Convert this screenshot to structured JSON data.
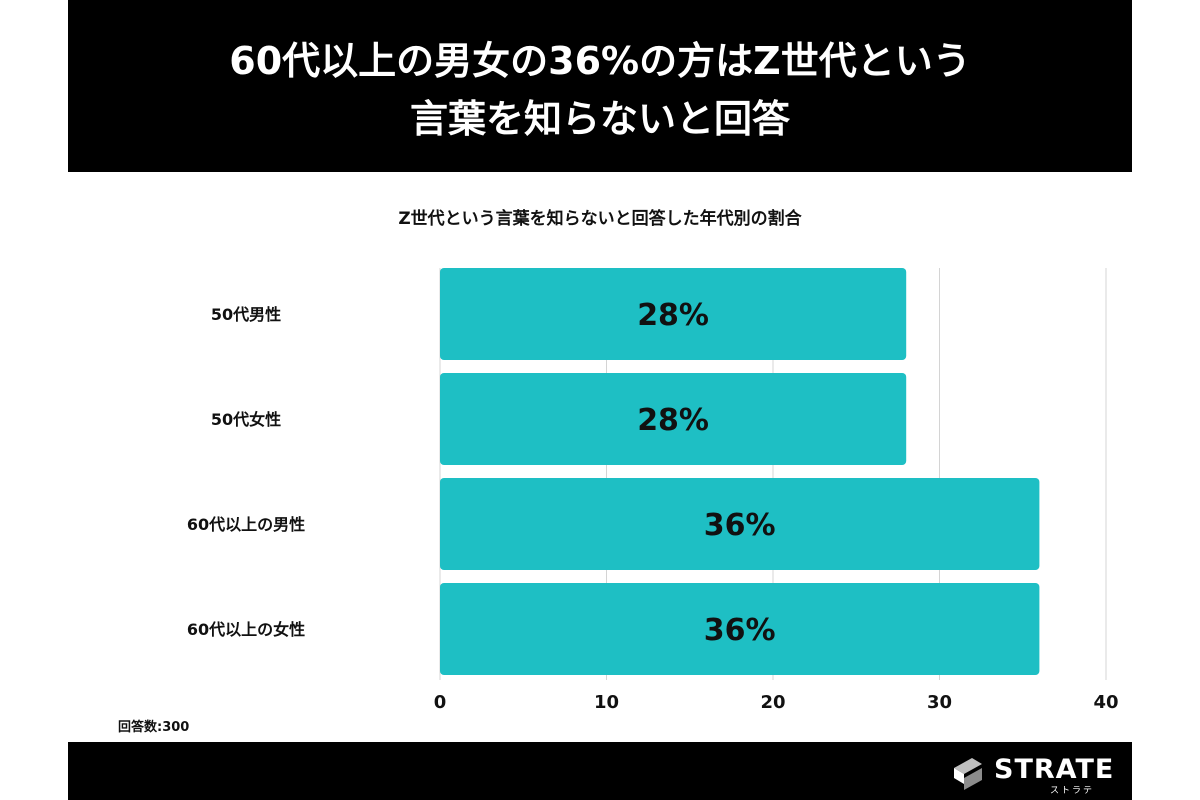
{
  "header": {
    "headline_line1": "60代以上の男女の36%の方はZ世代という",
    "headline_line2": "言葉を知らないと回答"
  },
  "chart_data": {
    "type": "bar",
    "orientation": "horizontal",
    "title": "Z世代という言葉を知らないと回答した年代別の割合",
    "categories": [
      "50代男性",
      "50代女性",
      "60代以上の男性",
      "60代以上の女性"
    ],
    "values": [
      28,
      28,
      36,
      36
    ],
    "data_labels": [
      "28%",
      "28%",
      "36%",
      "36%"
    ],
    "xlim": [
      0,
      40
    ],
    "xticks": [
      0,
      10,
      20,
      30,
      40
    ],
    "grid": true,
    "bar_color": "#1ebfc4"
  },
  "footnote": {
    "sample": "回答数:300"
  },
  "footer": {
    "brand_name": "STRATE",
    "brand_sub": "ストラテ"
  }
}
